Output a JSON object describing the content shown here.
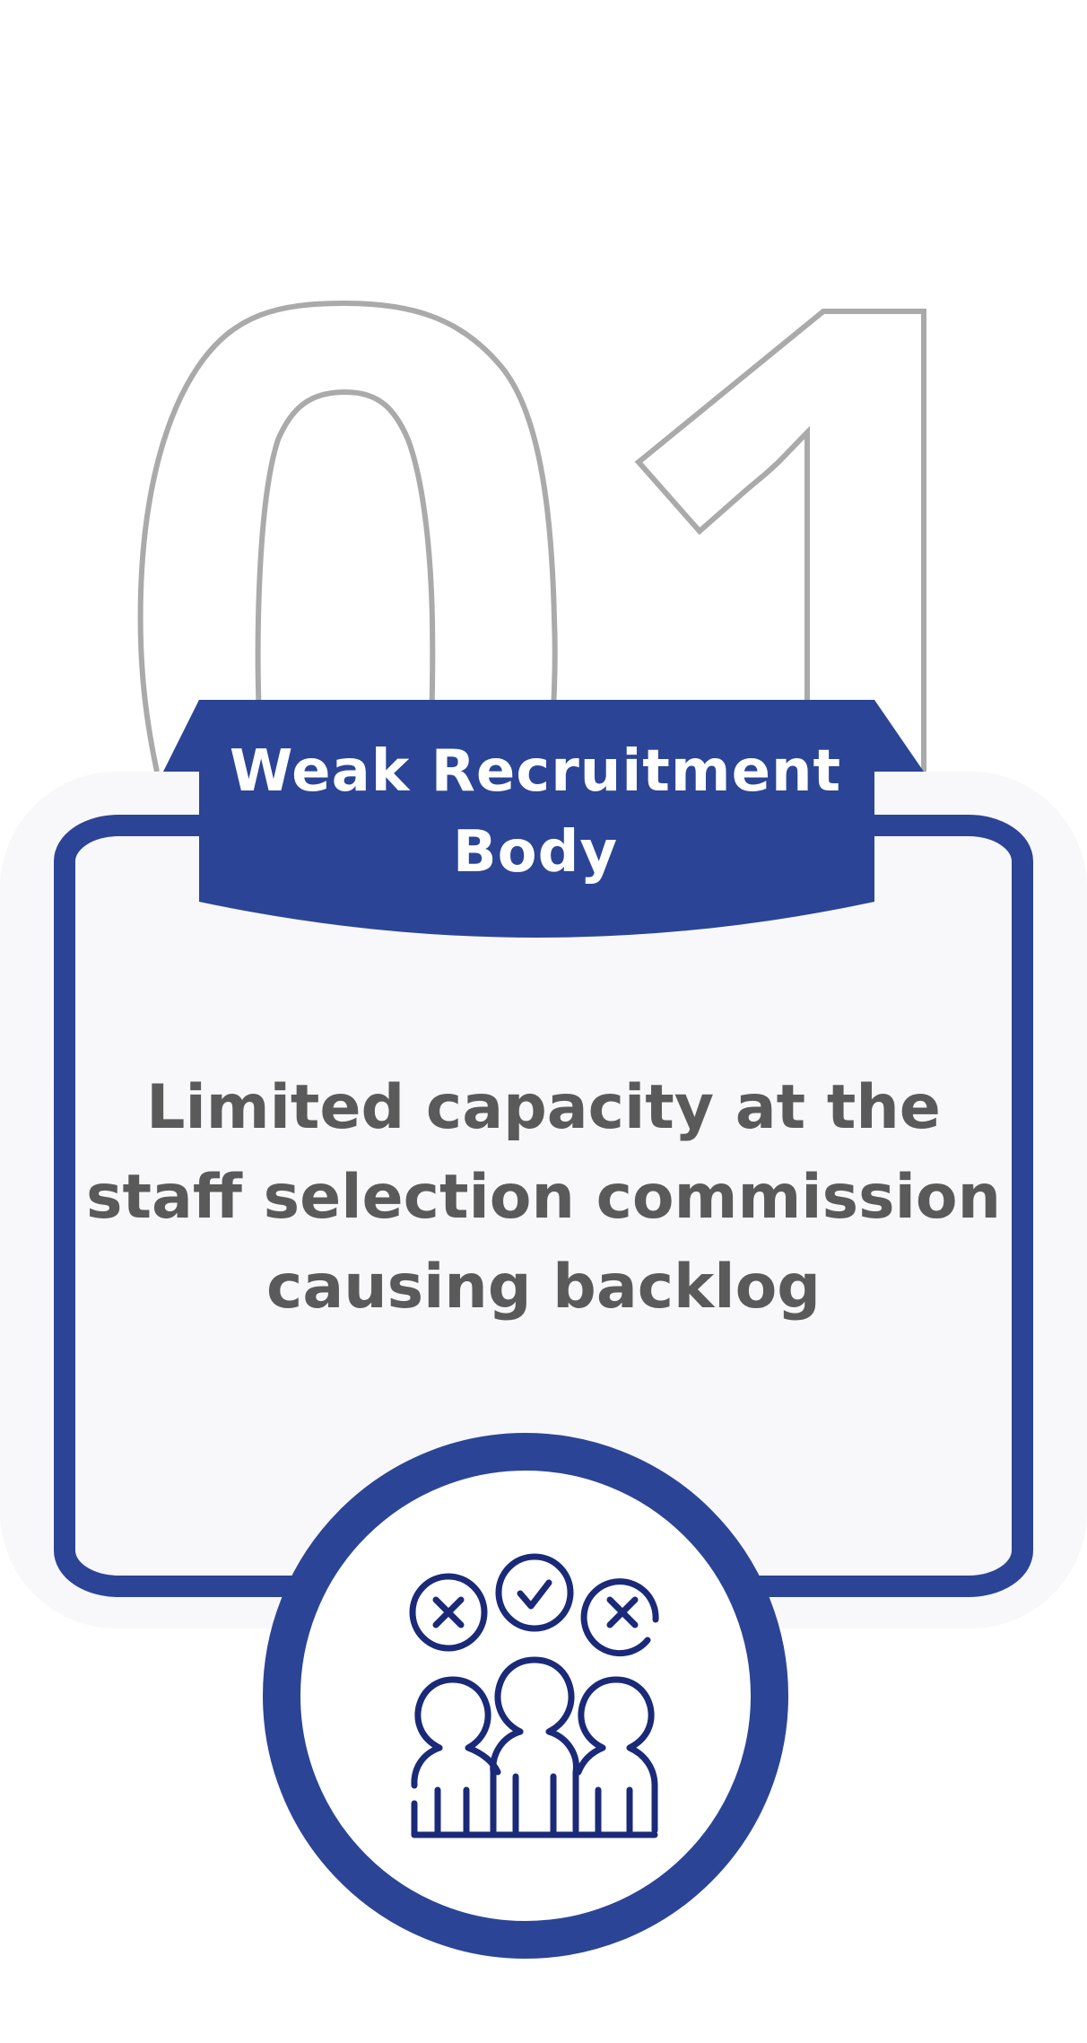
{
  "number": "01",
  "title": "Weak Recruitment Body",
  "description": "Limited capacity at the staff selection commission causing backlog",
  "icon": "candidate-selection-icon",
  "colors": {
    "accent": "#2b4496",
    "icon_stroke": "#1a2a78",
    "number_outline": "#aaaaaa",
    "card_bg": "#f8f8fa",
    "text": "#5a5a5a",
    "title_text": "#ffffff"
  }
}
